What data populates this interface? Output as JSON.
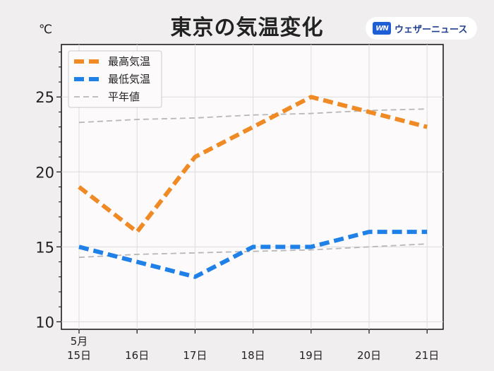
{
  "header": {
    "title": "東京の気温変化",
    "unit": "℃"
  },
  "brand": {
    "logo_text": "WN",
    "name": "ウェザーニュース",
    "logo_color": "#1f5fd6"
  },
  "chart_data": {
    "type": "line",
    "title": "東京の気温変化",
    "ylabel": "℃",
    "xlabel": "",
    "categories": [
      "15日",
      "16日",
      "17日",
      "18日",
      "19日",
      "20日",
      "21日"
    ],
    "month_label": "5月",
    "ylim": [
      9.5,
      28.5
    ],
    "yticks": [
      10,
      15,
      20,
      25
    ],
    "grid": true,
    "legend_position": "top-left",
    "series": [
      {
        "name": "最高気温",
        "values": [
          19,
          16,
          21,
          23,
          25,
          24,
          23
        ],
        "color": "#ef8a24",
        "style": "dashed-thick"
      },
      {
        "name": "最低気温",
        "values": [
          15,
          14,
          13,
          15,
          15,
          16,
          16
        ],
        "color": "#1f80e8",
        "style": "dashed-thick"
      },
      {
        "name": "平年値",
        "values": [
          23.3,
          23.5,
          23.6,
          23.8,
          23.9,
          24.1,
          24.2
        ],
        "color": "#b8b8b8",
        "style": "dashed-thin"
      },
      {
        "name": "",
        "values": [
          14.3,
          14.5,
          14.6,
          14.7,
          14.8,
          15.0,
          15.2
        ],
        "color": "#b8b8b8",
        "style": "dashed-thin"
      }
    ]
  }
}
